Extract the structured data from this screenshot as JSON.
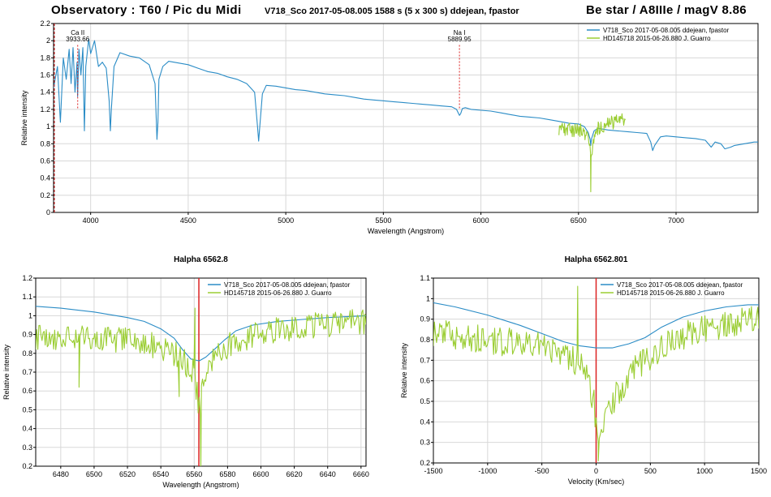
{
  "header": {
    "left": "Observatory : T60 / Pic du Midi",
    "center": "V718_Sco  2017-05-08.005  1588 s (5 x 300 s)  ddejean, fpastor",
    "right": "Be star / A8IIIe / magV 8.86"
  },
  "colors": {
    "blue": "#2a8cc6",
    "green": "#9acd32",
    "red": "#dd2222",
    "grid": "#d8d8d8"
  },
  "chart_data": [
    {
      "type": "line",
      "title": "",
      "xlabel": "Wavelength (Angstrom)",
      "ylabel": "Relative intensity",
      "xlim": [
        3810,
        7420
      ],
      "ylim": [
        0,
        2.2
      ],
      "xticks": [
        4000,
        4500,
        5000,
        5500,
        6000,
        6500,
        7000
      ],
      "yticks": [
        0,
        0.2,
        0.4,
        0.6,
        0.8,
        1,
        1.2,
        1.4,
        1.6,
        1.8,
        2,
        2.2
      ],
      "grid": true,
      "legend_position": "top-right",
      "series": [
        {
          "name": "V718_Sco  2017-05-08.005  ddejean, fpastor",
          "color": "#2a8cc6",
          "x": [
            3810,
            3830,
            3845,
            3860,
            3875,
            3890,
            3900,
            3910,
            3920,
            3930,
            3933,
            3940,
            3950,
            3960,
            3968,
            3975,
            3990,
            4000,
            4020,
            4040,
            4060,
            4080,
            4095,
            4101,
            4106,
            4120,
            4150,
            4200,
            4250,
            4300,
            4330,
            4340,
            4345,
            4350,
            4370,
            4400,
            4450,
            4500,
            4550,
            4600,
            4650,
            4700,
            4750,
            4800,
            4840,
            4855,
            4861,
            4867,
            4880,
            4900,
            4950,
            5000,
            5050,
            5100,
            5150,
            5200,
            5250,
            5300,
            5350,
            5400,
            5450,
            5500,
            5550,
            5600,
            5650,
            5700,
            5750,
            5800,
            5850,
            5875,
            5890,
            5896,
            5905,
            5920,
            5950,
            6000,
            6050,
            6100,
            6150,
            6200,
            6250,
            6300,
            6350,
            6400,
            6450,
            6500,
            6530,
            6550,
            6560,
            6563,
            6567,
            6580,
            6600,
            6650,
            6700,
            6750,
            6800,
            6850,
            6870,
            6880,
            6890,
            6920,
            6950,
            7000,
            7050,
            7100,
            7150,
            7180,
            7200,
            7230,
            7250,
            7280,
            7300,
            7350,
            7400,
            7420
          ],
          "y": [
            1.45,
            1.7,
            1.05,
            1.8,
            1.55,
            1.9,
            1.5,
            1.92,
            1.4,
            1.75,
            1.35,
            1.9,
            1.6,
            1.92,
            0.95,
            1.7,
            2.02,
            1.85,
            2.0,
            1.7,
            1.75,
            1.68,
            1.3,
            0.95,
            1.2,
            1.7,
            1.86,
            1.82,
            1.8,
            1.72,
            1.5,
            0.85,
            1.05,
            1.55,
            1.7,
            1.76,
            1.74,
            1.72,
            1.68,
            1.64,
            1.62,
            1.58,
            1.55,
            1.5,
            1.4,
            1.0,
            0.83,
            1.0,
            1.38,
            1.48,
            1.47,
            1.45,
            1.43,
            1.42,
            1.4,
            1.38,
            1.37,
            1.36,
            1.34,
            1.32,
            1.31,
            1.3,
            1.29,
            1.28,
            1.27,
            1.26,
            1.25,
            1.24,
            1.23,
            1.2,
            1.13,
            1.15,
            1.21,
            1.22,
            1.2,
            1.19,
            1.18,
            1.16,
            1.14,
            1.12,
            1.11,
            1.1,
            1.08,
            1.06,
            1.04,
            1.03,
            1.0,
            0.93,
            0.85,
            0.78,
            0.86,
            0.95,
            0.98,
            0.96,
            0.95,
            0.94,
            0.93,
            0.92,
            0.82,
            0.72,
            0.78,
            0.88,
            0.89,
            0.88,
            0.87,
            0.86,
            0.84,
            0.76,
            0.82,
            0.8,
            0.74,
            0.76,
            0.78,
            0.8,
            0.82,
            0.82
          ]
        },
        {
          "name": "HD145718  2015-06-26.880  J. Guarro",
          "color": "#9acd32",
          "x_range": [
            6400,
            6740
          ],
          "base": [
            [
              6400,
              0.98
            ],
            [
              6480,
              0.96
            ],
            [
              6520,
              0.95
            ],
            [
              6545,
              0.9
            ],
            [
              6555,
              0.82
            ],
            [
              6561,
              0.75
            ],
            [
              6563,
              0.6
            ],
            [
              6567,
              0.7
            ],
            [
              6580,
              0.88
            ],
            [
              6600,
              0.98
            ],
            [
              6660,
              1.04
            ],
            [
              6740,
              1.08
            ]
          ],
          "dips": [
            [
              6563,
              0.24
            ]
          ],
          "noise": 0.08
        }
      ],
      "annotations": [
        {
          "label": "Ca II",
          "value": "3933.66",
          "x": 3933.66
        },
        {
          "label": "Na I",
          "value": "5889.95",
          "x": 5889.95
        }
      ]
    },
    {
      "type": "line",
      "title": "Halpha 6562.8",
      "xlabel": "Wavelength (Angstrom)",
      "ylabel": "Relative intensity",
      "xlim": [
        6465,
        6663
      ],
      "ylim": [
        0.2,
        1.2
      ],
      "xticks": [
        6480,
        6500,
        6520,
        6540,
        6560,
        6580,
        6600,
        6620,
        6640,
        6660
      ],
      "yticks": [
        0.2,
        0.3,
        0.4,
        0.5,
        0.6,
        0.7,
        0.8,
        0.9,
        1,
        1.1,
        1.2
      ],
      "grid": true,
      "legend_position": "top-right",
      "marker_line": 6562.8,
      "series": [
        {
          "name": "V718_Sco  2017-05-08.005  ddejean, fpastor",
          "color": "#2a8cc6",
          "x": [
            6465,
            6480,
            6500,
            6520,
            6530,
            6540,
            6548,
            6553,
            6558,
            6563,
            6567,
            6572,
            6578,
            6585,
            6595,
            6610,
            6625,
            6640,
            6663
          ],
          "y": [
            1.05,
            1.04,
            1.02,
            0.99,
            0.97,
            0.93,
            0.88,
            0.82,
            0.77,
            0.76,
            0.78,
            0.82,
            0.87,
            0.92,
            0.95,
            0.97,
            0.98,
            0.99,
            1.0
          ]
        },
        {
          "name": "HD145718  2015-06-26.880  J. Guarro",
          "color": "#9acd32",
          "x_range": [
            6465,
            6663
          ],
          "base": [
            [
              6465,
              0.89
            ],
            [
              6500,
              0.88
            ],
            [
              6530,
              0.86
            ],
            [
              6548,
              0.8
            ],
            [
              6556,
              0.74
            ],
            [
              6560,
              0.7
            ],
            [
              6563,
              0.5
            ],
            [
              6566,
              0.66
            ],
            [
              6572,
              0.78
            ],
            [
              6585,
              0.87
            ],
            [
              6610,
              0.93
            ],
            [
              6663,
              0.97
            ]
          ],
          "dips": [
            [
              6564,
              0.2
            ],
            [
              6551,
              0.57
            ],
            [
              6491,
              0.62
            ]
          ],
          "spikes": [
            [
              6560.5,
              1.04
            ]
          ],
          "noise": 0.07
        }
      ]
    },
    {
      "type": "line",
      "title": "Halpha 6562.801",
      "xlabel": "Velocity (Km/sec)",
      "ylabel": "Relative intensity",
      "xlim": [
        -1500,
        1500
      ],
      "ylim": [
        0.2,
        1.1
      ],
      "xticks": [
        -1500,
        -1000,
        -500,
        0,
        500,
        1000,
        1500
      ],
      "yticks": [
        0.2,
        0.3,
        0.4,
        0.5,
        0.6,
        0.7,
        0.8,
        0.9,
        1,
        1.1
      ],
      "grid": true,
      "legend_position": "top-right",
      "marker_line": 0,
      "series": [
        {
          "name": "V718_Sco  2017-05-08.005  ddejean, fpastor",
          "color": "#2a8cc6",
          "x": [
            -1500,
            -1300,
            -1000,
            -700,
            -500,
            -300,
            -150,
            0,
            150,
            300,
            450,
            600,
            800,
            1000,
            1200,
            1400,
            1500
          ],
          "y": [
            0.98,
            0.96,
            0.92,
            0.87,
            0.83,
            0.79,
            0.77,
            0.76,
            0.76,
            0.78,
            0.81,
            0.86,
            0.91,
            0.94,
            0.96,
            0.97,
            0.97
          ]
        },
        {
          "name": "HD145718  2015-06-26.880  J. Guarro",
          "color": "#9acd32",
          "x_range": [
            -1500,
            1500
          ],
          "base": [
            [
              -1500,
              0.84
            ],
            [
              -1000,
              0.8
            ],
            [
              -500,
              0.77
            ],
            [
              -250,
              0.72
            ],
            [
              -100,
              0.65
            ],
            [
              -20,
              0.5
            ],
            [
              0,
              0.35
            ],
            [
              60,
              0.4
            ],
            [
              200,
              0.55
            ],
            [
              400,
              0.68
            ],
            [
              700,
              0.8
            ],
            [
              1000,
              0.85
            ],
            [
              1500,
              0.9
            ]
          ],
          "dips": [
            [
              20,
              0.21
            ]
          ],
          "spikes": [
            [
              -170,
              1.06
            ]
          ],
          "noise": 0.07
        }
      ]
    }
  ]
}
